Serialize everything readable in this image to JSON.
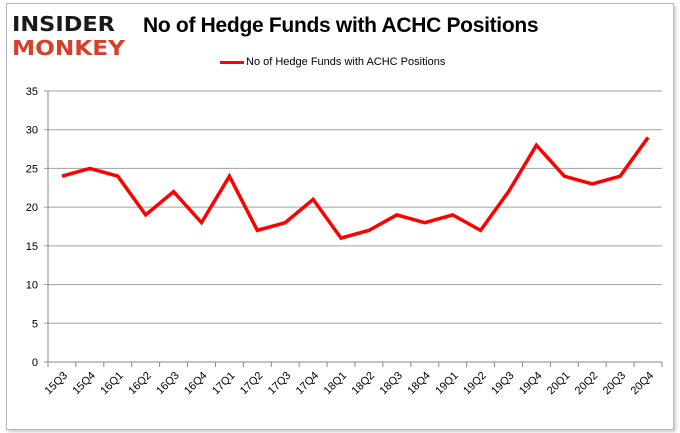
{
  "logo": {
    "line1": "INSIDER",
    "line2": "MONKEY"
  },
  "colors": {
    "series": "#ff0000",
    "grid": "#a0a0a0",
    "logo_dark": "#1a1a1a",
    "logo_red": "#d6402b"
  },
  "chart_data": {
    "type": "line",
    "title": "No of Hedge Funds with ACHC Positions",
    "xlabel": "",
    "ylabel": "",
    "legend": {
      "position": "top",
      "entries": [
        "No of Hedge Funds with ACHC Positions"
      ]
    },
    "grid": true,
    "ylim": [
      0,
      35
    ],
    "yticks": [
      0,
      5,
      10,
      15,
      20,
      25,
      30,
      35
    ],
    "categories": [
      "15Q3",
      "15Q4",
      "16Q1",
      "16Q2",
      "16Q3",
      "16Q4",
      "17Q1",
      "17Q2",
      "17Q3",
      "17Q4",
      "18Q1",
      "18Q2",
      "18Q3",
      "18Q4",
      "19Q1",
      "19Q2",
      "19Q3",
      "19Q4",
      "20Q1",
      "20Q2",
      "20Q3",
      "20Q4"
    ],
    "series": [
      {
        "name": "No of Hedge Funds with ACHC Positions",
        "values": [
          24,
          25,
          24,
          19,
          22,
          18,
          24,
          17,
          18,
          21,
          16,
          17,
          19,
          18,
          19,
          17,
          22,
          28,
          24,
          23,
          24,
          29
        ]
      }
    ]
  }
}
